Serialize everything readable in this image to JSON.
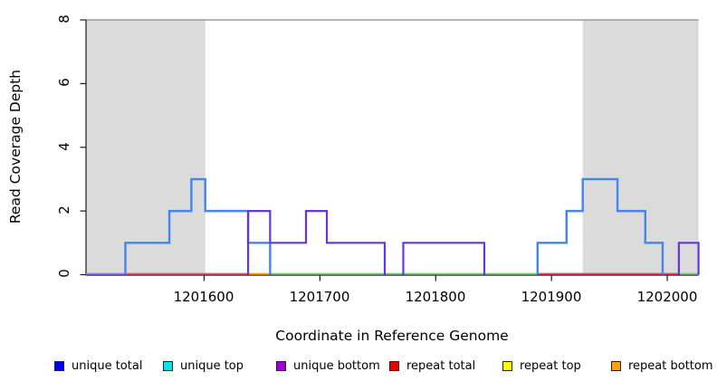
{
  "chart_data": {
    "type": "line",
    "subtype": "step-coverage",
    "title": "",
    "xlabel": "Coordinate in Reference Genome",
    "ylabel": "Read Coverage Depth",
    "xlim": [
      1201498,
      1202027
    ],
    "ylim": [
      0,
      8
    ],
    "x_ticks": [
      1201600,
      1201700,
      1201800,
      1201900,
      1202000
    ],
    "y_ticks": [
      0,
      2,
      4,
      6,
      8
    ],
    "grid": false,
    "legend_position": "bottom",
    "shaded_regions": [
      {
        "from": 1201498,
        "to": 1201601,
        "color": "#dbdbdb"
      },
      {
        "from": 1201927,
        "to": 1202027,
        "color": "#dbdbdb"
      }
    ],
    "top_boundary_line": {
      "y": 8,
      "color": "#9c9c9c"
    },
    "series": [
      {
        "name": "unique top",
        "color": "#4de8e8",
        "width": 1.6,
        "points": [
          [
            1201498,
            0
          ],
          [
            1201638,
            1
          ],
          [
            1201657,
            0
          ],
          [
            1202027,
            0
          ]
        ]
      },
      {
        "name": "unique total",
        "color": "#4484f0",
        "width": 2.4,
        "points": [
          [
            1201498,
            0
          ],
          [
            1201532,
            1
          ],
          [
            1201570,
            2
          ],
          [
            1201589,
            3
          ],
          [
            1201601,
            2
          ],
          [
            1201638,
            1
          ],
          [
            1201657,
            0
          ],
          [
            1201888,
            1
          ],
          [
            1201913,
            2
          ],
          [
            1201927,
            3
          ],
          [
            1201957,
            2
          ],
          [
            1201981,
            1
          ],
          [
            1201996,
            0
          ],
          [
            1202027,
            0
          ]
        ]
      },
      {
        "name": "unique bottom",
        "color": "#6535e0",
        "width": 2.2,
        "points": [
          [
            1201498,
            0
          ],
          [
            1201638,
            2
          ],
          [
            1201657,
            1
          ],
          [
            1201688,
            2
          ],
          [
            1201706,
            1
          ],
          [
            1201756,
            0
          ],
          [
            1201772,
            1
          ],
          [
            1201842,
            0
          ],
          [
            1202010,
            1
          ],
          [
            1202027,
            0
          ]
        ]
      },
      {
        "name": "repeat total",
        "color": "#dd4455",
        "width": 1.8,
        "points": [
          [
            1201498,
            0
          ],
          [
            1202027,
            0
          ]
        ]
      },
      {
        "name": "repeat top",
        "color": "#ffff00",
        "width": 1.8,
        "points": [
          [
            1201498,
            0
          ],
          [
            1202027,
            0
          ]
        ]
      },
      {
        "name": "repeat bottom",
        "color": "#ffa500",
        "width": 1.8,
        "points": [
          [
            1201498,
            0
          ],
          [
            1202027,
            0
          ]
        ]
      }
    ],
    "baseline_segments": [
      {
        "from": 1201498,
        "to": 1201532,
        "color": "#8c7cf0"
      },
      {
        "from": 1201532,
        "to": 1201638,
        "color": "#e05565"
      },
      {
        "from": 1201638,
        "to": 1201657,
        "color": "#ffa500"
      },
      {
        "from": 1201657,
        "to": 1201888,
        "color": "#7cc87c"
      },
      {
        "from": 1201888,
        "to": 1202010,
        "color": "#dd4455"
      },
      {
        "from": 1202010,
        "to": 1202027,
        "color": "#7cc87c"
      }
    ],
    "legend": [
      {
        "label": "unique total",
        "color": "#0000f5"
      },
      {
        "label": "unique top",
        "color": "#00e5ee"
      },
      {
        "label": "unique bottom",
        "color": "#9d00d6"
      },
      {
        "label": "repeat total",
        "color": "#ee0000"
      },
      {
        "label": "repeat top",
        "color": "#ffff00"
      },
      {
        "label": "repeat bottom",
        "color": "#ffa300"
      }
    ]
  }
}
